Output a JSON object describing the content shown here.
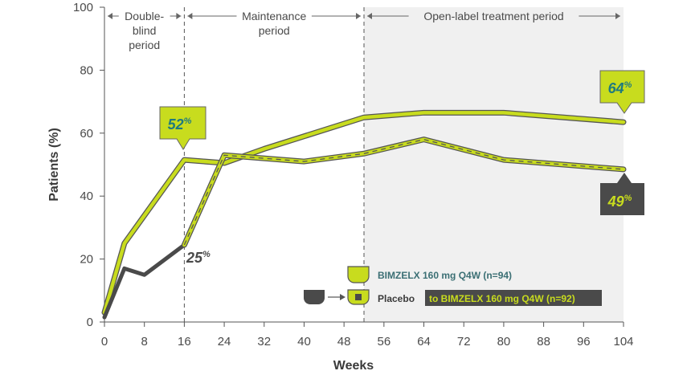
{
  "chart_data": {
    "type": "line",
    "xlabel": "Weeks",
    "ylabel": "Patients (%)",
    "xlim": [
      0,
      104
    ],
    "ylim": [
      0,
      100
    ],
    "x_ticks": [
      0,
      8,
      16,
      24,
      32,
      40,
      48,
      56,
      64,
      72,
      80,
      88,
      96,
      104
    ],
    "y_ticks": [
      0,
      20,
      40,
      60,
      80,
      100
    ],
    "periods": [
      {
        "label": [
          "Double-",
          "blind",
          "period"
        ],
        "start": 0,
        "end": 16
      },
      {
        "label": [
          "Maintenance",
          "period"
        ],
        "start": 16,
        "end": 52
      },
      {
        "label": [
          "Open-label treatment period"
        ],
        "start": 52,
        "end": 104,
        "shaded": true
      }
    ],
    "series": [
      {
        "name": "BIMZELX 160 mg Q4W (n=94)",
        "color": "#c8dc1e",
        "outline": "#555555",
        "style": "solid",
        "points": [
          [
            0,
            3
          ],
          [
            4,
            25
          ],
          [
            16,
            51.5
          ],
          [
            24,
            50.5
          ],
          [
            32,
            55
          ],
          [
            52,
            65
          ],
          [
            64,
            66.5
          ],
          [
            80,
            66.5
          ],
          [
            104,
            63.5
          ]
        ]
      },
      {
        "name": "Placebo",
        "color": "#4a4a4a",
        "style": "solid",
        "points": [
          [
            0,
            1.5
          ],
          [
            4,
            17
          ],
          [
            8,
            15
          ],
          [
            16,
            24.5
          ]
        ]
      },
      {
        "name": "Placebo to BIMZELX 160 mg Q4W (n=92)",
        "color": "#c8dc1e",
        "outline": "#555555",
        "style": "dashed",
        "points": [
          [
            16,
            24.5
          ],
          [
            24,
            53
          ],
          [
            40,
            51
          ],
          [
            52,
            53.5
          ],
          [
            64,
            58
          ],
          [
            80,
            51.5
          ],
          [
            104,
            48.5
          ]
        ]
      }
    ],
    "annotations": [
      {
        "text": "52",
        "unit": "%",
        "style": "green-box"
      },
      {
        "text": "25",
        "unit": "%",
        "style": "plain"
      },
      {
        "text": "64",
        "unit": "%",
        "style": "green-box"
      },
      {
        "text": "49",
        "unit": "%",
        "style": "dark-box"
      }
    ],
    "legend": {
      "placement": "bottom-right",
      "bimzelx_label": "BIMZELX 160 mg Q4W (n=94)",
      "placebo_label": "Placebo",
      "switch_label": "to BIMZELX 160 mg Q4W (n=92)"
    },
    "colors": {
      "lime": "#c8dc1e",
      "dark": "#4a4a4a",
      "shade": "#f0f0f0",
      "teal_text": "#1f7a7f"
    }
  }
}
